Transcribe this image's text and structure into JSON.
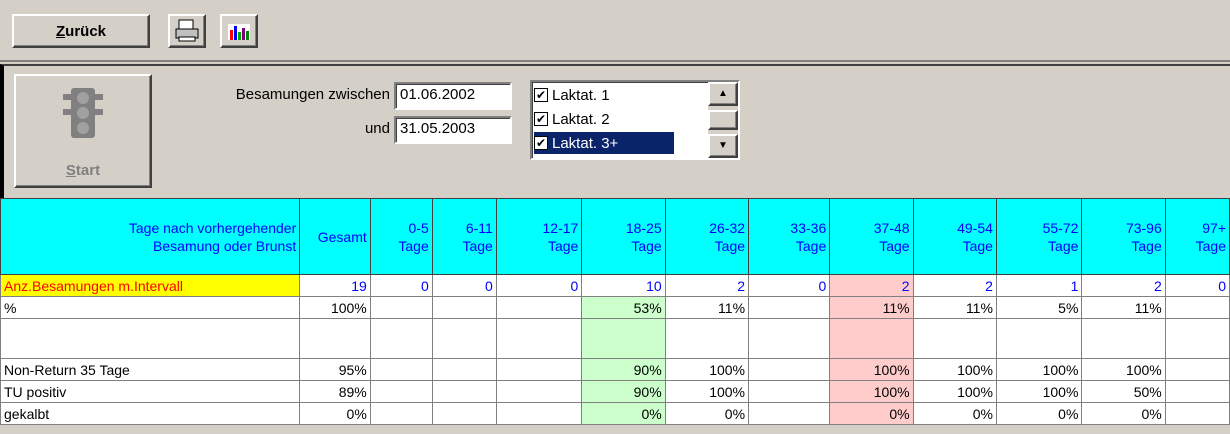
{
  "toolbar": {
    "back": "Zurück"
  },
  "filter": {
    "label_from": "Besamungen zwischen",
    "date_from": "01.06.2002",
    "label_to": "und",
    "date_to": "31.05.2003",
    "start": "Start",
    "lactations": [
      "Laktat. 1",
      "Laktat. 2",
      "Laktat. 3+"
    ]
  },
  "table": {
    "corner": [
      "Tage nach vorhergehender",
      "Besamung oder Brunst"
    ],
    "columns": [
      [
        "Gesamt"
      ],
      [
        "0-5",
        "Tage"
      ],
      [
        "6-11",
        "Tage"
      ],
      [
        "12-17",
        "Tage"
      ],
      [
        "18-25",
        "Tage"
      ],
      [
        "26-32",
        "Tage"
      ],
      [
        "33-36",
        "Tage"
      ],
      [
        "37-48",
        "Tage"
      ],
      [
        "49-54",
        "Tage"
      ],
      [
        "55-72",
        "Tage"
      ],
      [
        "73-96",
        "Tage"
      ],
      [
        "97+",
        "Tage"
      ]
    ],
    "rows": [
      {
        "label": "Anz.Besamungen m.Intervall",
        "cells": [
          19,
          0,
          0,
          0,
          10,
          2,
          0,
          2,
          2,
          1,
          2,
          0
        ]
      },
      {
        "label": "%",
        "cells": [
          "100%",
          null,
          null,
          null,
          "53%",
          "11%",
          null,
          "11%",
          "11%",
          "5%",
          "11%",
          null
        ]
      },
      {
        "label": null,
        "cells": [
          null,
          null,
          null,
          null,
          null,
          null,
          null,
          null,
          null,
          null,
          null,
          null
        ]
      },
      {
        "label": "Non-Return 35 Tage",
        "cells": [
          "95%",
          null,
          null,
          null,
          "90%",
          "100%",
          null,
          "100%",
          "100%",
          "100%",
          "100%",
          null
        ]
      },
      {
        "label": "TU positiv",
        "cells": [
          "89%",
          null,
          null,
          null,
          "90%",
          "100%",
          null,
          "100%",
          "100%",
          "100%",
          "50%",
          null
        ]
      },
      {
        "label": "gekalbt",
        "cells": [
          "0%",
          null,
          null,
          null,
          "0%",
          "0%",
          null,
          "0%",
          "0%",
          "0%",
          "0%",
          null
        ]
      }
    ]
  }
}
